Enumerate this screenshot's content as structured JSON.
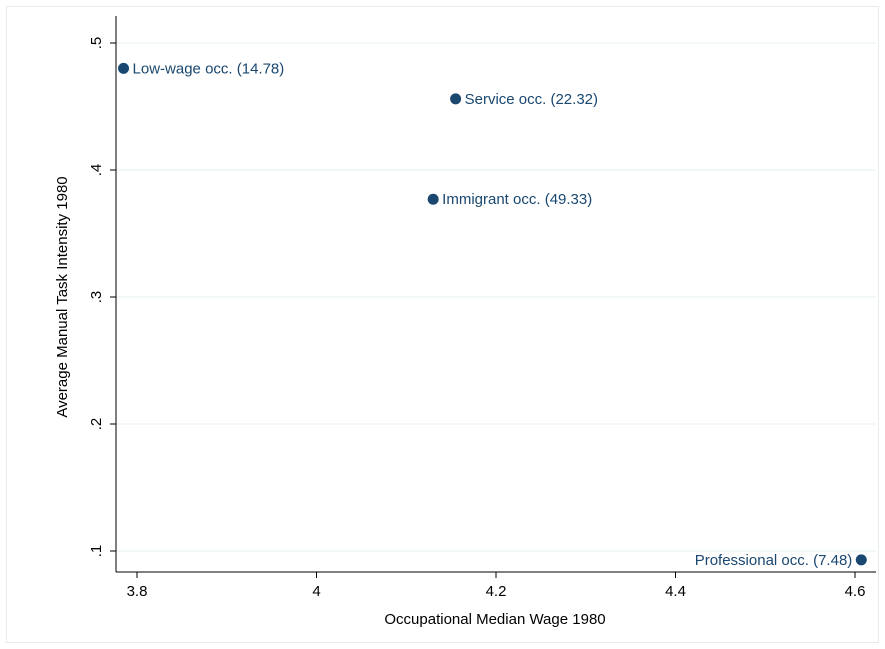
{
  "chart_data": {
    "type": "scatter",
    "title": "",
    "xlabel": "Occupational Median Wage 1980",
    "ylabel": "Average Manual Task Intensity 1980",
    "xlim": [
      3.78,
      4.62
    ],
    "ylim": [
      0.085,
      0.52
    ],
    "xticks": [
      {
        "value": 3.8,
        "label": "3.8"
      },
      {
        "value": 4.0,
        "label": "4"
      },
      {
        "value": 4.2,
        "label": "4.2"
      },
      {
        "value": 4.4,
        "label": "4.4"
      },
      {
        "value": 4.6,
        "label": "4.6"
      }
    ],
    "yticks": [
      {
        "value": 0.1,
        "label": ".1"
      },
      {
        "value": 0.2,
        "label": ".2"
      },
      {
        "value": 0.3,
        "label": ".3"
      },
      {
        "value": 0.4,
        "label": ".4"
      },
      {
        "value": 0.5,
        "label": ".5"
      }
    ],
    "grid": true,
    "points": [
      {
        "label": "Low-wage occ. (14.78)",
        "x": 3.785,
        "y": 0.48,
        "label_side": "right"
      },
      {
        "label": "Service occ. (22.32)",
        "x": 4.155,
        "y": 0.456,
        "label_side": "right"
      },
      {
        "label": "Immigrant occ. (49.33)",
        "x": 4.13,
        "y": 0.377,
        "label_side": "right"
      },
      {
        "label": "Professional occ. (7.48)",
        "x": 4.607,
        "y": 0.093,
        "label_side": "left"
      }
    ]
  },
  "colors": {
    "marker": "#1a476f",
    "grid": "#eaf2f3",
    "axis": "#000000",
    "frame": "#e6ebef"
  }
}
